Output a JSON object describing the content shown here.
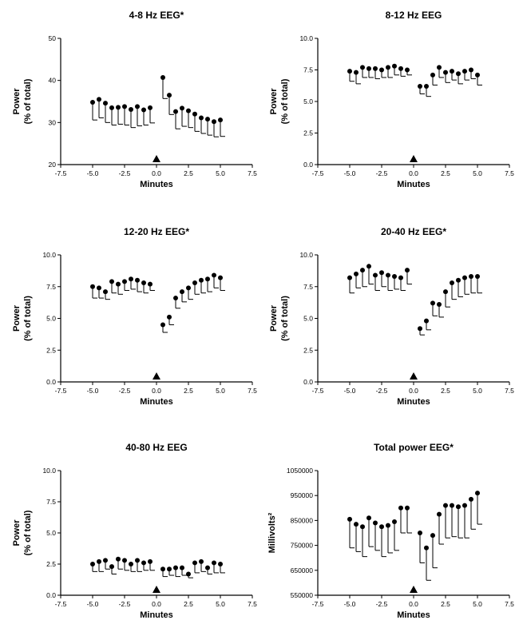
{
  "chart_data": [
    {
      "type": "scatter",
      "title": "4-8 Hz EEG*",
      "xlabel": "Minutes",
      "ylabel": [
        "Power",
        "(% of total)"
      ],
      "xlim": [
        -7.5,
        7.5
      ],
      "ylim": [
        20,
        50
      ],
      "xticks": [
        -7.5,
        -5.0,
        -2.5,
        0.0,
        2.5,
        5.0,
        7.5
      ],
      "xtick_labels": [
        "-7.5",
        "-5.0",
        "-2.5",
        "0.0",
        "2.5",
        "5.0",
        "7.5"
      ],
      "yticks": [
        20,
        30,
        40,
        50
      ],
      "ytick_labels": [
        "20",
        "30",
        "40",
        "50"
      ],
      "marker_x": 0,
      "error_direction": "down",
      "x": [
        -5.0,
        -4.5,
        -4.0,
        -3.5,
        -3.0,
        -2.5,
        -2.0,
        -1.5,
        -1.0,
        -0.5,
        0.5,
        1.0,
        1.5,
        2.0,
        2.5,
        3.0,
        3.5,
        4.0,
        4.5,
        5.0
      ],
      "y": [
        34.8,
        35.5,
        34.6,
        33.5,
        33.6,
        33.8,
        33.1,
        33.8,
        33.0,
        33.5,
        40.7,
        36.5,
        32.6,
        33.4,
        32.8,
        32.0,
        31.1,
        30.8,
        30.2,
        30.6
      ],
      "error": [
        4.2,
        4.4,
        4.6,
        4.1,
        4.0,
        4.4,
        4.3,
        4.6,
        3.6,
        3.6,
        5.0,
        4.6,
        4.1,
        4.3,
        4.0,
        4.1,
        3.7,
        3.8,
        3.6,
        3.9
      ]
    },
    {
      "type": "scatter",
      "title": "8-12 Hz EEG",
      "xlabel": "Minutes",
      "ylabel": [
        "Power",
        "(% of total)"
      ],
      "xlim": [
        -7.5,
        7.5
      ],
      "ylim": [
        0,
        10
      ],
      "xticks": [
        -7.5,
        -5.0,
        -2.5,
        0.0,
        2.5,
        5.0,
        7.5
      ],
      "xtick_labels": [
        "-7.5",
        "-5.0",
        "-2.5",
        "0.0",
        "2.5",
        "5.0",
        "7.5"
      ],
      "yticks": [
        0,
        2.5,
        5,
        7.5,
        10
      ],
      "ytick_labels": [
        "0.0",
        "2.5",
        "5.0",
        "7.5",
        "10.0"
      ],
      "marker_x": 0,
      "error_direction": "down",
      "x": [
        -5.0,
        -4.5,
        -4.0,
        -3.5,
        -3.0,
        -2.5,
        -2.0,
        -1.5,
        -1.0,
        -0.5,
        0.5,
        1.0,
        1.5,
        2.0,
        2.5,
        3.0,
        3.5,
        4.0,
        4.5,
        5.0
      ],
      "y": [
        7.4,
        7.3,
        7.7,
        7.6,
        7.6,
        7.5,
        7.7,
        7.8,
        7.6,
        7.5,
        6.2,
        6.2,
        7.1,
        7.7,
        7.3,
        7.4,
        7.2,
        7.4,
        7.5,
        7.1
      ],
      "error": [
        0.8,
        0.9,
        0.8,
        0.7,
        0.8,
        0.6,
        0.8,
        0.7,
        0.6,
        0.4,
        0.6,
        0.8,
        0.8,
        0.8,
        0.8,
        0.7,
        0.8,
        0.7,
        0.7,
        0.8
      ]
    },
    {
      "type": "scatter",
      "title": "12-20 Hz EEG*",
      "xlabel": "Minutes",
      "ylabel": [
        "Power",
        "(% of total)"
      ],
      "xlim": [
        -7.5,
        7.5
      ],
      "ylim": [
        0,
        10
      ],
      "xticks": [
        -7.5,
        -5.0,
        -2.5,
        0.0,
        2.5,
        5.0,
        7.5
      ],
      "xtick_labels": [
        "-7.5",
        "-5.0",
        "-2.5",
        "0.0",
        "2.5",
        "5.0",
        "7.5"
      ],
      "yticks": [
        0,
        2.5,
        5,
        7.5,
        10
      ],
      "ytick_labels": [
        "0.0",
        "2.5",
        "5.0",
        "7.5",
        "10.0"
      ],
      "marker_x": 0,
      "error_direction": "down",
      "x": [
        -5.0,
        -4.5,
        -4.0,
        -3.5,
        -3.0,
        -2.5,
        -2.0,
        -1.5,
        -1.0,
        -0.5,
        0.5,
        1.0,
        1.5,
        2.0,
        2.5,
        3.0,
        3.5,
        4.0,
        4.5,
        5.0
      ],
      "y": [
        7.5,
        7.4,
        7.1,
        7.9,
        7.7,
        7.9,
        8.1,
        8.0,
        7.8,
        7.7,
        4.5,
        5.1,
        6.6,
        7.1,
        7.4,
        7.8,
        8.0,
        8.1,
        8.4,
        8.2
      ],
      "error": [
        0.9,
        0.8,
        0.6,
        0.9,
        0.8,
        0.7,
        0.8,
        0.9,
        0.8,
        0.5,
        0.6,
        0.6,
        0.8,
        0.8,
        0.9,
        0.9,
        1.0,
        1.0,
        1.0,
        1.0
      ]
    },
    {
      "type": "scatter",
      "title": "20-40 Hz EEG*",
      "xlabel": "Minutes",
      "ylabel": [
        "Power",
        "(% of total)"
      ],
      "xlim": [
        -7.5,
        7.5
      ],
      "ylim": [
        0,
        10
      ],
      "xticks": [
        -7.5,
        -5.0,
        -2.5,
        0.0,
        2.5,
        5.0,
        7.5
      ],
      "xtick_labels": [
        "-7.5",
        "-5.0",
        "-2.5",
        "0.0",
        "2.5",
        "5.0",
        "7.5"
      ],
      "yticks": [
        0,
        2.5,
        5,
        7.5,
        10
      ],
      "ytick_labels": [
        "0.0",
        "2.5",
        "5.0",
        "7.5",
        "10.0"
      ],
      "marker_x": 0,
      "error_direction": "down",
      "x": [
        -5.0,
        -4.5,
        -4.0,
        -3.5,
        -3.0,
        -2.5,
        -2.0,
        -1.5,
        -1.0,
        -0.5,
        0.5,
        1.0,
        1.5,
        2.0,
        2.5,
        3.0,
        3.5,
        4.0,
        4.5,
        5.0
      ],
      "y": [
        8.2,
        8.5,
        8.8,
        9.1,
        8.4,
        8.6,
        8.4,
        8.3,
        8.2,
        8.8,
        4.2,
        4.8,
        6.2,
        6.1,
        7.1,
        7.8,
        8.0,
        8.2,
        8.3,
        8.3
      ],
      "error": [
        1.2,
        1.1,
        1.3,
        1.4,
        1.2,
        1.1,
        1.2,
        1.0,
        1.0,
        1.1,
        0.5,
        0.7,
        1.0,
        1.0,
        1.2,
        1.3,
        1.3,
        1.3,
        1.3,
        1.3
      ]
    },
    {
      "type": "scatter",
      "title": "40-80 Hz EEG",
      "xlabel": "Minutes",
      "ylabel": [
        "Power",
        "(% of total)"
      ],
      "xlim": [
        -7.5,
        7.5
      ],
      "ylim": [
        0,
        10
      ],
      "xticks": [
        -7.5,
        -5.0,
        -2.5,
        0.0,
        2.5,
        5.0,
        7.5
      ],
      "xtick_labels": [
        "-7.5",
        "-5.0",
        "-2.5",
        "0.0",
        "2.5",
        "5.0",
        "7.5"
      ],
      "yticks": [
        0,
        2.5,
        5,
        7.5,
        10
      ],
      "ytick_labels": [
        "0.0",
        "2.5",
        "5.0",
        "7.5",
        "10.0"
      ],
      "marker_x": 0,
      "error_direction": "down",
      "x": [
        -5.0,
        -4.5,
        -4.0,
        -3.5,
        -3.0,
        -2.5,
        -2.0,
        -1.5,
        -1.0,
        -0.5,
        0.5,
        1.0,
        1.5,
        2.0,
        2.5,
        3.0,
        3.5,
        4.0,
        4.5,
        5.0
      ],
      "y": [
        2.5,
        2.7,
        2.8,
        2.3,
        2.9,
        2.8,
        2.5,
        2.8,
        2.6,
        2.7,
        2.1,
        2.1,
        2.2,
        2.2,
        1.7,
        2.6,
        2.7,
        2.2,
        2.6,
        2.5
      ],
      "error": [
        0.6,
        0.8,
        0.7,
        0.6,
        0.8,
        0.8,
        0.6,
        0.9,
        0.6,
        0.7,
        0.6,
        0.5,
        0.7,
        0.6,
        0.3,
        0.8,
        0.8,
        0.5,
        0.8,
        0.7
      ]
    },
    {
      "type": "scatter",
      "title": "Total power EEG*",
      "xlabel": "Minutes",
      "ylabel": [
        "Millivolts²"
      ],
      "xlim": [
        -7.5,
        7.5
      ],
      "ylim": [
        550000,
        1050000
      ],
      "xticks": [
        -7.5,
        -5.0,
        -2.5,
        0.0,
        2.5,
        5.0,
        7.5
      ],
      "xtick_labels": [
        "-7.5",
        "-5.0",
        "-2.5",
        "0.0",
        "2.5",
        "5.0",
        "7.5"
      ],
      "yticks": [
        550000,
        650000,
        750000,
        850000,
        950000,
        1050000
      ],
      "ytick_labels": [
        "550000",
        "650000",
        "750000",
        "850000",
        "950000",
        "1050000"
      ],
      "marker_x": 0,
      "error_direction": "down",
      "x": [
        -5.0,
        -4.5,
        -4.0,
        -3.5,
        -3.0,
        -2.5,
        -2.0,
        -1.5,
        -1.0,
        -0.5,
        0.5,
        1.0,
        1.5,
        2.0,
        2.5,
        3.0,
        3.5,
        4.0,
        4.5,
        5.0
      ],
      "y": [
        855000,
        835000,
        825000,
        860000,
        840000,
        825000,
        830000,
        845000,
        900000,
        900000,
        800000,
        740000,
        790000,
        875000,
        910000,
        910000,
        905000,
        910000,
        935000,
        960000
      ],
      "error": [
        115000,
        110000,
        120000,
        115000,
        110000,
        120000,
        110000,
        115000,
        100000,
        100000,
        120000,
        130000,
        130000,
        120000,
        130000,
        125000,
        125000,
        130000,
        120000,
        125000
      ]
    }
  ]
}
